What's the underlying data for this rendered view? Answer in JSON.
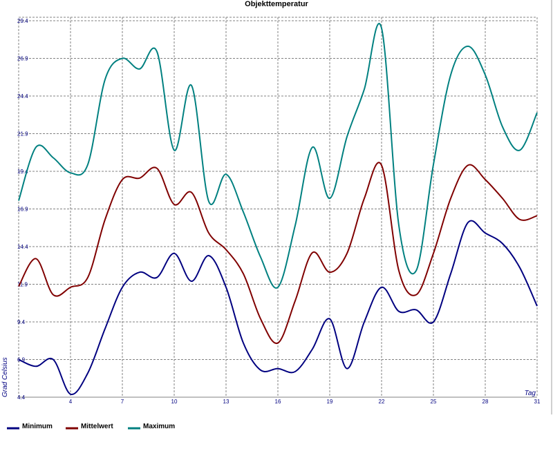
{
  "chart_data": {
    "type": "line",
    "title": "Objekttemperatur",
    "x_label": "Tag",
    "y_label": "Grad Celsius",
    "x": [
      1,
      2,
      3,
      4,
      5,
      6,
      7,
      8,
      9,
      10,
      11,
      12,
      13,
      14,
      15,
      16,
      17,
      18,
      19,
      20,
      21,
      22,
      23,
      24,
      25,
      26,
      27,
      28,
      29,
      30,
      31
    ],
    "series": [
      {
        "name": "Minimum",
        "color": "#000080",
        "values": [
          6.9,
          6.45,
          6.9,
          4.6,
          6.0,
          8.95,
          11.7,
          12.7,
          12.35,
          13.95,
          12.1,
          13.8,
          11.7,
          8.0,
          6.2,
          6.3,
          6.1,
          7.6,
          9.6,
          6.3,
          9.4,
          11.7,
          10.1,
          10.2,
          9.4,
          12.6,
          16.0,
          15.3,
          14.6,
          13.0,
          10.45
        ]
      },
      {
        "name": "Mittelwert",
        "color": "#800000",
        "values": [
          11.76,
          13.6,
          11.2,
          11.7,
          12.35,
          16.2,
          18.85,
          18.95,
          19.6,
          17.2,
          18.0,
          15.3,
          14.2,
          12.6,
          9.6,
          8.0,
          10.8,
          14.0,
          12.7,
          13.95,
          17.6,
          19.8,
          12.8,
          11.2,
          13.95,
          17.6,
          19.8,
          18.85,
          17.6,
          16.2,
          16.45
        ]
      },
      {
        "name": "Maximum",
        "color": "#008080",
        "values": [
          17.45,
          21.0,
          20.3,
          19.3,
          19.85,
          25.5,
          26.9,
          26.2,
          27.35,
          20.8,
          25.1,
          17.4,
          19.2,
          16.7,
          13.7,
          11.7,
          15.8,
          21.0,
          17.6,
          21.7,
          24.85,
          28.9,
          15.8,
          12.8,
          19.85,
          25.8,
          27.7,
          25.8,
          22.35,
          20.8,
          23.3
        ]
      }
    ],
    "xlim": [
      1,
      31
    ],
    "xticks": [
      4,
      7,
      10,
      13,
      16,
      19,
      22,
      25,
      28,
      31
    ],
    "ylim": [
      4.4,
      29.4
    ],
    "yticks": [
      4.4,
      6.9,
      9.4,
      11.9,
      14.4,
      16.9,
      19.4,
      21.9,
      24.4,
      26.9,
      29.4
    ],
    "grid": true
  }
}
